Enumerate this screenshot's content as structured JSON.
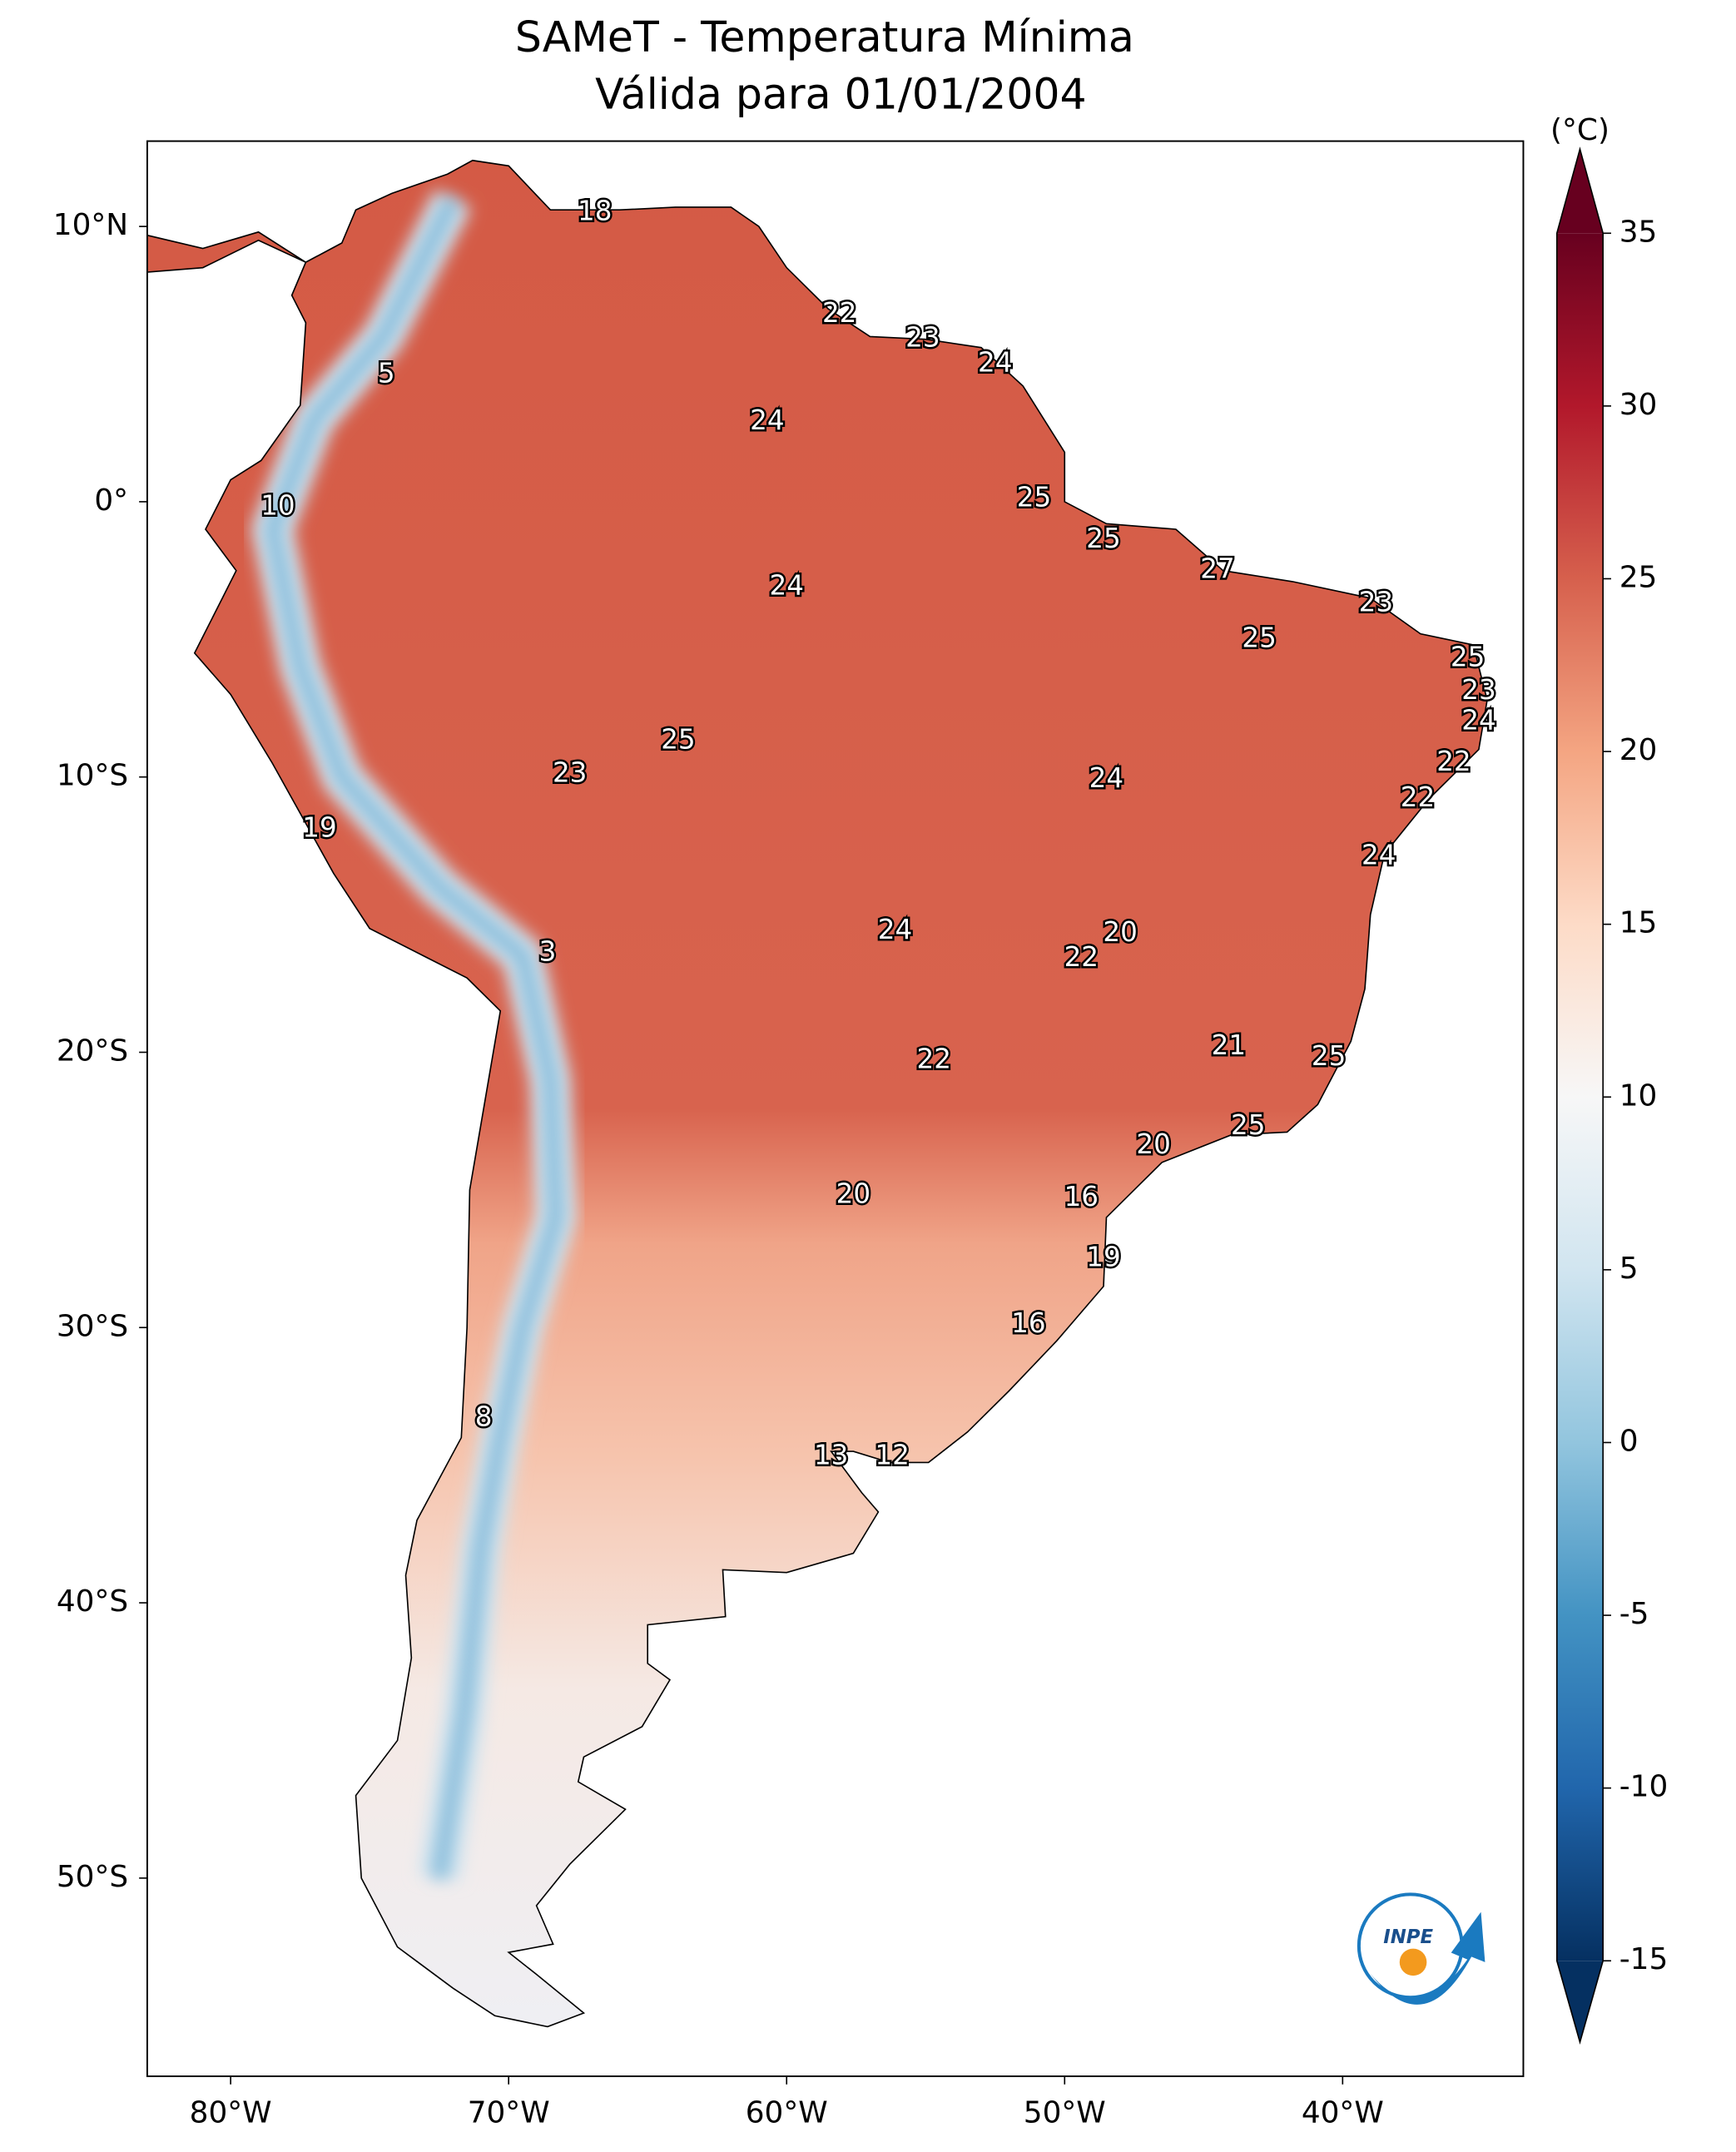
{
  "chart_data": {
    "type": "map",
    "title": "SAMeT - Temperatura Mínima",
    "subtitle": "Válida para 01/01/2004",
    "xlim": [
      -83,
      -33.5
    ],
    "ylim": [
      -57.2,
      13.1
    ],
    "xticks": [
      {
        "value": -80,
        "label": "80°W"
      },
      {
        "value": -70,
        "label": "70°W"
      },
      {
        "value": -60,
        "label": "60°W"
      },
      {
        "value": -50,
        "label": "50°W"
      },
      {
        "value": -40,
        "label": "40°W"
      }
    ],
    "yticks": [
      {
        "value": 10,
        "label": "10°N"
      },
      {
        "value": 0,
        "label": "0°"
      },
      {
        "value": -10,
        "label": "10°S"
      },
      {
        "value": -20,
        "label": "20°S"
      },
      {
        "value": -30,
        "label": "30°S"
      },
      {
        "value": -40,
        "label": "40°S"
      },
      {
        "value": -50,
        "label": "50°S"
      }
    ],
    "colorbar": {
      "label": "(°C)",
      "lim": [
        -15,
        35
      ],
      "ticks": [
        -15,
        -10,
        -5,
        0,
        5,
        10,
        15,
        20,
        25,
        30,
        35
      ]
    },
    "logo": "INPE",
    "stations": [
      {
        "lon": -66.9,
        "lat": 10.5,
        "value": 18
      },
      {
        "lon": -58.1,
        "lat": 6.8,
        "value": 22
      },
      {
        "lon": -55.1,
        "lat": 5.9,
        "value": 23
      },
      {
        "lon": -52.5,
        "lat": 5.0,
        "value": 24
      },
      {
        "lon": -74.4,
        "lat": 4.6,
        "value": 5
      },
      {
        "lon": -60.7,
        "lat": 2.9,
        "value": 24
      },
      {
        "lon": -78.3,
        "lat": -0.2,
        "value": 10
      },
      {
        "lon": -51.1,
        "lat": 0.1,
        "value": 25
      },
      {
        "lon": -48.6,
        "lat": -1.4,
        "value": 25
      },
      {
        "lon": -44.5,
        "lat": -2.5,
        "value": 27
      },
      {
        "lon": -60.0,
        "lat": -3.1,
        "value": 24
      },
      {
        "lon": -38.8,
        "lat": -3.7,
        "value": 23
      },
      {
        "lon": -43.0,
        "lat": -5.0,
        "value": 25
      },
      {
        "lon": -35.5,
        "lat": -5.7,
        "value": 25
      },
      {
        "lon": -35.1,
        "lat": -6.9,
        "value": 23
      },
      {
        "lon": -35.1,
        "lat": -8.0,
        "value": 24
      },
      {
        "lon": -63.9,
        "lat": -8.7,
        "value": 25
      },
      {
        "lon": -36.0,
        "lat": -9.5,
        "value": 22
      },
      {
        "lon": -67.8,
        "lat": -9.9,
        "value": 23
      },
      {
        "lon": -48.5,
        "lat": -10.1,
        "value": 24
      },
      {
        "lon": -37.3,
        "lat": -10.8,
        "value": 22
      },
      {
        "lon": -76.8,
        "lat": -11.9,
        "value": 19
      },
      {
        "lon": -38.7,
        "lat": -12.9,
        "value": 24
      },
      {
        "lon": -56.1,
        "lat": -15.6,
        "value": 24
      },
      {
        "lon": -48.0,
        "lat": -15.7,
        "value": 20
      },
      {
        "lon": -49.4,
        "lat": -16.6,
        "value": 22
      },
      {
        "lon": -68.6,
        "lat": -16.4,
        "value": 3
      },
      {
        "lon": -44.1,
        "lat": -19.8,
        "value": 21
      },
      {
        "lon": -54.7,
        "lat": -20.3,
        "value": 22
      },
      {
        "lon": -40.5,
        "lat": -20.2,
        "value": 25
      },
      {
        "lon": -43.4,
        "lat": -22.7,
        "value": 25
      },
      {
        "lon": -46.8,
        "lat": -23.4,
        "value": 20
      },
      {
        "lon": -57.6,
        "lat": -25.2,
        "value": 20
      },
      {
        "lon": -49.4,
        "lat": -25.3,
        "value": 16
      },
      {
        "lon": -48.6,
        "lat": -27.5,
        "value": 19
      },
      {
        "lon": -51.3,
        "lat": -29.9,
        "value": 16
      },
      {
        "lon": -70.9,
        "lat": -33.3,
        "value": 8
      },
      {
        "lon": -58.4,
        "lat": -34.7,
        "value": 13
      },
      {
        "lon": -56.2,
        "lat": -34.7,
        "value": 12
      }
    ]
  }
}
